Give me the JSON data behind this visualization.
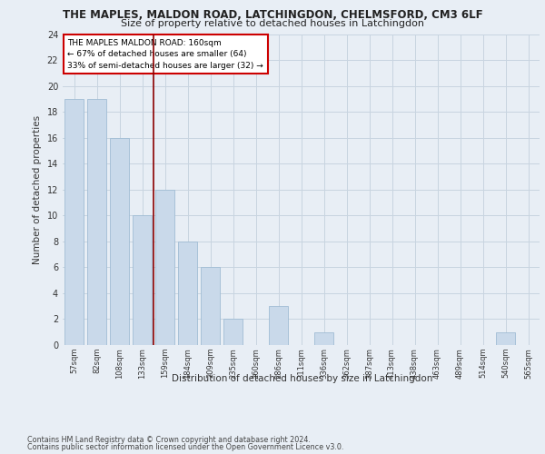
{
  "title1": "THE MAPLES, MALDON ROAD, LATCHINGDON, CHELMSFORD, CM3 6LF",
  "title2": "Size of property relative to detached houses in Latchingdon",
  "xlabel": "Distribution of detached houses by size in Latchingdon",
  "ylabel": "Number of detached properties",
  "categories": [
    "57sqm",
    "82sqm",
    "108sqm",
    "133sqm",
    "159sqm",
    "184sqm",
    "209sqm",
    "235sqm",
    "260sqm",
    "286sqm",
    "311sqm",
    "336sqm",
    "362sqm",
    "387sqm",
    "413sqm",
    "438sqm",
    "463sqm",
    "489sqm",
    "514sqm",
    "540sqm",
    "565sqm"
  ],
  "values": [
    19,
    19,
    16,
    10,
    12,
    8,
    6,
    2,
    0,
    3,
    0,
    1,
    0,
    0,
    0,
    0,
    0,
    0,
    0,
    1,
    0
  ],
  "bar_color": "#c9d9ea",
  "bar_edge_color": "#a0bcd4",
  "grid_color": "#c8d4e0",
  "background_color": "#e8eef5",
  "vline_color": "#8b0000",
  "annotation_lines": [
    "THE MAPLES MALDON ROAD: 160sqm",
    "← 67% of detached houses are smaller (64)",
    "33% of semi-detached houses are larger (32) →"
  ],
  "annotation_box_color": "#ffffff",
  "annotation_box_edge": "#cc0000",
  "ylim": [
    0,
    24
  ],
  "yticks": [
    0,
    2,
    4,
    6,
    8,
    10,
    12,
    14,
    16,
    18,
    20,
    22,
    24
  ],
  "footnote1": "Contains HM Land Registry data © Crown copyright and database right 2024.",
  "footnote2": "Contains public sector information licensed under the Open Government Licence v3.0."
}
